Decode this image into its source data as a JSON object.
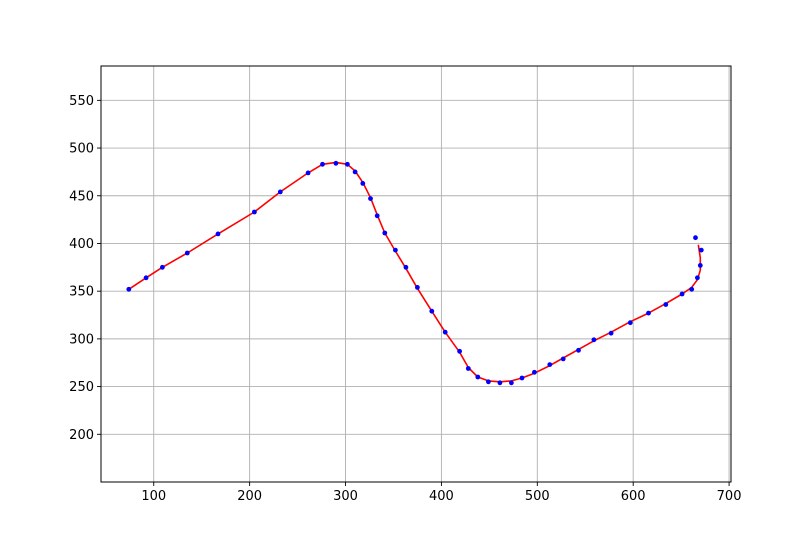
{
  "chart_data": {
    "type": "line",
    "title": "",
    "xlabel": "",
    "ylabel": "",
    "xlim": [
      45,
      702
    ],
    "ylim": [
      150,
      586
    ],
    "xticks": [
      100,
      200,
      300,
      400,
      500,
      600,
      700
    ],
    "yticks": [
      200,
      250,
      300,
      350,
      400,
      450,
      500,
      550
    ],
    "grid": true,
    "series": [
      {
        "kind": "points",
        "color": "#0000ff",
        "points": [
          [
            74,
            352
          ],
          [
            92,
            364
          ],
          [
            109,
            375
          ],
          [
            135,
            390
          ],
          [
            167,
            410
          ],
          [
            205,
            433
          ],
          [
            232,
            454
          ],
          [
            261,
            474
          ],
          [
            276,
            483
          ],
          [
            290,
            484
          ],
          [
            302,
            483
          ],
          [
            310,
            475
          ],
          [
            318,
            463
          ],
          [
            326,
            447
          ],
          [
            333,
            429
          ],
          [
            341,
            411
          ],
          [
            352,
            393
          ],
          [
            363,
            375
          ],
          [
            375,
            354
          ],
          [
            390,
            329
          ],
          [
            404,
            307
          ],
          [
            419,
            287
          ],
          [
            428,
            269
          ],
          [
            438,
            260
          ],
          [
            449,
            255
          ],
          [
            461,
            254
          ],
          [
            473,
            254
          ],
          [
            484,
            259
          ],
          [
            497,
            265
          ],
          [
            513,
            273
          ],
          [
            527,
            279
          ],
          [
            543,
            288
          ],
          [
            559,
            299
          ],
          [
            577,
            306
          ],
          [
            597,
            317
          ],
          [
            616,
            327
          ],
          [
            634,
            336
          ],
          [
            651,
            347
          ],
          [
            661,
            352
          ],
          [
            667,
            364
          ],
          [
            670,
            377
          ],
          [
            671,
            393
          ],
          [
            665,
            406
          ]
        ]
      },
      {
        "kind": "line",
        "color": "#ff0000",
        "points": [
          [
            74,
            352
          ],
          [
            92,
            364
          ],
          [
            109,
            375
          ],
          [
            135,
            390
          ],
          [
            167,
            410
          ],
          [
            205,
            433
          ],
          [
            232,
            454
          ],
          [
            261,
            474
          ],
          [
            276,
            483
          ],
          [
            290,
            485
          ],
          [
            302,
            483
          ],
          [
            310,
            476
          ],
          [
            318,
            464
          ],
          [
            326,
            448
          ],
          [
            333,
            430
          ],
          [
            341,
            411
          ],
          [
            352,
            392
          ],
          [
            363,
            374
          ],
          [
            375,
            353
          ],
          [
            390,
            329
          ],
          [
            404,
            307
          ],
          [
            419,
            286
          ],
          [
            428,
            270
          ],
          [
            438,
            260
          ],
          [
            449,
            256
          ],
          [
            461,
            255
          ],
          [
            473,
            256
          ],
          [
            484,
            259
          ],
          [
            497,
            264
          ],
          [
            513,
            272
          ],
          [
            527,
            280
          ],
          [
            543,
            289
          ],
          [
            559,
            298
          ],
          [
            577,
            307
          ],
          [
            597,
            318
          ],
          [
            616,
            327
          ],
          [
            634,
            337
          ],
          [
            651,
            347
          ],
          [
            661,
            354
          ],
          [
            667,
            362
          ],
          [
            670,
            372
          ],
          [
            670,
            385
          ],
          [
            668,
            398
          ]
        ]
      }
    ]
  }
}
